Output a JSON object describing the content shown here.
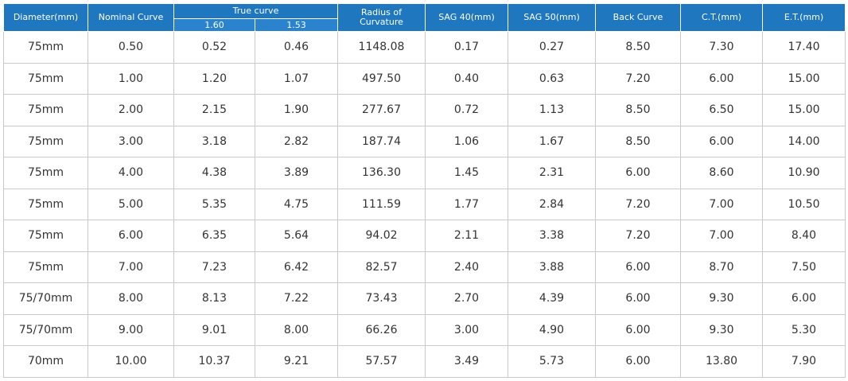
{
  "header": {
    "diameter": "Diameter(mm)",
    "nominal_curve": "Nominal Curve",
    "true_curve": "True curve",
    "true_curve_sub": [
      "1.60",
      "1.53"
    ],
    "radius": "Radius of Curvature",
    "sag40": "SAG 40(mm)",
    "sag50": "SAG 50(mm)",
    "back_curve": "Back Curve",
    "ct": "C.T.(mm)",
    "et": "E.T.(mm)"
  },
  "table": {
    "rows": [
      [
        "75mm",
        "0.50",
        "0.52",
        "0.46",
        "1148.08",
        "0.17",
        "0.27",
        "8.50",
        "7.30",
        "17.40"
      ],
      [
        "75mm",
        "1.00",
        "1.20",
        "1.07",
        "497.50",
        "0.40",
        "0.63",
        "7.20",
        "6.00",
        "15.00"
      ],
      [
        "75mm",
        "2.00",
        "2.15",
        "1.90",
        "277.67",
        "0.72",
        "1.13",
        "8.50",
        "6.50",
        "15.00"
      ],
      [
        "75mm",
        "3.00",
        "3.18",
        "2.82",
        "187.74",
        "1.06",
        "1.67",
        "8.50",
        "6.00",
        "14.00"
      ],
      [
        "75mm",
        "4.00",
        "4.38",
        "3.89",
        "136.30",
        "1.45",
        "2.31",
        "6.00",
        "8.60",
        "10.90"
      ],
      [
        "75mm",
        "5.00",
        "5.35",
        "4.75",
        "111.59",
        "1.77",
        "2.84",
        "7.20",
        "7.00",
        "10.50"
      ],
      [
        "75mm",
        "6.00",
        "6.35",
        "5.64",
        "94.02",
        "2.11",
        "3.38",
        "7.20",
        "7.00",
        "8.40"
      ],
      [
        "75mm",
        "7.00",
        "7.23",
        "6.42",
        "82.57",
        "2.40",
        "3.88",
        "6.00",
        "8.70",
        "7.50"
      ],
      [
        "75/70mm",
        "8.00",
        "8.13",
        "7.22",
        "73.43",
        "2.70",
        "4.39",
        "6.00",
        "9.30",
        "6.00"
      ],
      [
        "75/70mm",
        "9.00",
        "9.01",
        "8.00",
        "66.26",
        "3.00",
        "4.90",
        "6.00",
        "9.30",
        "5.30"
      ],
      [
        "70mm",
        "10.00",
        "10.37",
        "9.21",
        "57.57",
        "3.49",
        "5.73",
        "6.00",
        "13.80",
        "7.90"
      ]
    ]
  }
}
